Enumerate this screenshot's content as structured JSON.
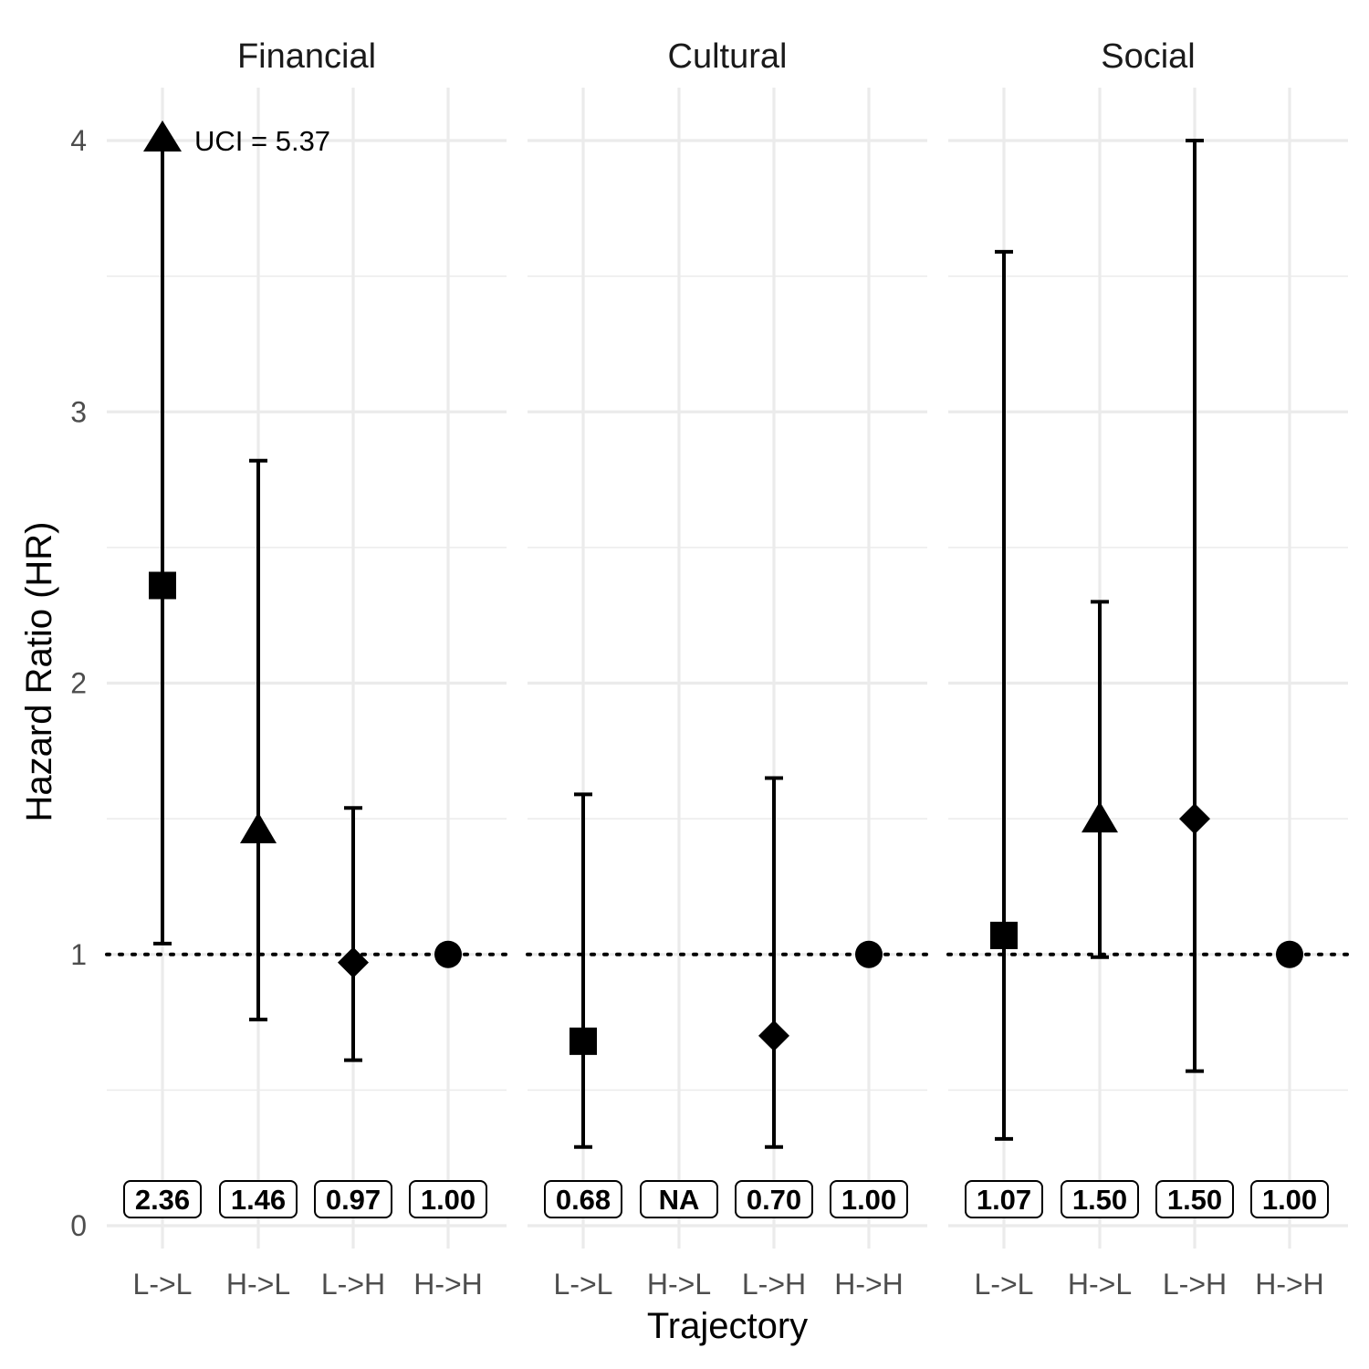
{
  "chart_data": {
    "type": "scatter",
    "xlabel": "Trajectory",
    "ylabel": "Hazard Ratio (HR)",
    "categories": [
      "L->L",
      "H->L",
      "L->H",
      "H->H"
    ],
    "ylim": [
      0,
      4
    ],
    "yticks": [
      "0",
      "1",
      "2",
      "3",
      "4"
    ],
    "reference_line": 1,
    "grid": true,
    "shapes": [
      "square",
      "triangle",
      "diamond",
      "circle"
    ],
    "panels": [
      {
        "name": "Financial",
        "points": [
          {
            "category": "L->L",
            "hr": 2.36,
            "lci": 1.04,
            "uci": 5.37,
            "label": "2.36"
          },
          {
            "category": "H->L",
            "hr": 1.46,
            "lci": 0.76,
            "uci": 2.82,
            "label": "1.46"
          },
          {
            "category": "L->H",
            "hr": 0.97,
            "lci": 0.61,
            "uci": 1.54,
            "label": "0.97"
          },
          {
            "category": "H->H",
            "hr": 1.0,
            "lci": null,
            "uci": null,
            "label": "1.00"
          }
        ]
      },
      {
        "name": "Cultural",
        "points": [
          {
            "category": "L->L",
            "hr": 0.68,
            "lci": 0.29,
            "uci": 1.59,
            "label": "0.68"
          },
          {
            "category": "H->L",
            "hr": null,
            "lci": null,
            "uci": null,
            "label": "NA"
          },
          {
            "category": "L->H",
            "hr": 0.7,
            "lci": 0.29,
            "uci": 1.65,
            "label": "0.70"
          },
          {
            "category": "H->H",
            "hr": 1.0,
            "lci": null,
            "uci": null,
            "label": "1.00"
          }
        ]
      },
      {
        "name": "Social",
        "points": [
          {
            "category": "L->L",
            "hr": 1.07,
            "lci": 0.32,
            "uci": 3.59,
            "label": "1.07"
          },
          {
            "category": "H->L",
            "hr": 1.5,
            "lci": 0.99,
            "uci": 2.3,
            "label": "1.50"
          },
          {
            "category": "L->H",
            "hr": 1.5,
            "lci": 0.57,
            "uci": 4.0,
            "label": "1.50"
          },
          {
            "category": "H->H",
            "hr": 1.0,
            "lci": null,
            "uci": null,
            "label": "1.00"
          }
        ]
      }
    ],
    "annotations": [
      {
        "panel": "Financial",
        "category": "L->L",
        "text": "UCI = 5.37",
        "arrow_at": 4
      }
    ]
  }
}
